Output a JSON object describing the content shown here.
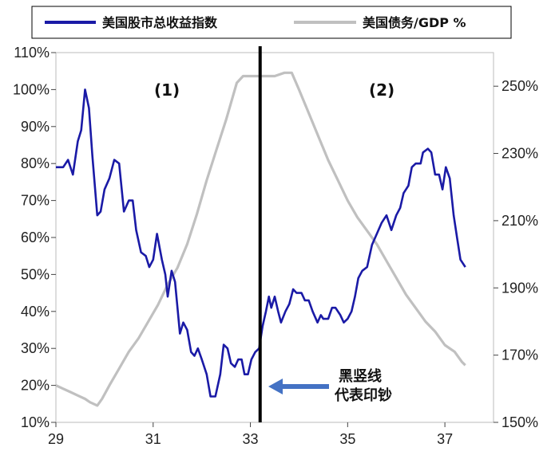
{
  "chart_data": {
    "type": "line",
    "x_ticks": [
      "29",
      "31",
      "33",
      "35",
      "37"
    ],
    "xlim": [
      29,
      38
    ],
    "y_left": {
      "ticks": [
        "10%",
        "20%",
        "30%",
        "40%",
        "50%",
        "60%",
        "70%",
        "80%",
        "90%",
        "100%",
        "110%"
      ],
      "range": [
        10,
        110
      ]
    },
    "y_right": {
      "ticks": [
        "150%",
        "170%",
        "190%",
        "210%",
        "230%",
        "250%"
      ],
      "range": [
        150,
        260
      ]
    },
    "legend": {
      "placement": "top",
      "items": [
        "美国股市总收益指数",
        "美国债务/GDP %"
      ]
    },
    "regions": [
      "(1)",
      "(2)"
    ],
    "divider": {
      "x": 33.2,
      "color": "#000000"
    },
    "annotation": {
      "lines": [
        "黑竖线",
        "代表印钞"
      ],
      "color": "#4472c4"
    },
    "series": [
      {
        "name": "美国股市总收益指数",
        "axis": "left",
        "color": "#1a1aa6",
        "points": [
          [
            29.0,
            79
          ],
          [
            29.15,
            79
          ],
          [
            29.25,
            81
          ],
          [
            29.35,
            77
          ],
          [
            29.45,
            86
          ],
          [
            29.52,
            89
          ],
          [
            29.6,
            100
          ],
          [
            29.68,
            95
          ],
          [
            29.75,
            82
          ],
          [
            29.85,
            66
          ],
          [
            29.92,
            67
          ],
          [
            30.0,
            73
          ],
          [
            30.1,
            76
          ],
          [
            30.2,
            81
          ],
          [
            30.3,
            80
          ],
          [
            30.4,
            67
          ],
          [
            30.5,
            70
          ],
          [
            30.58,
            70
          ],
          [
            30.65,
            62
          ],
          [
            30.75,
            56
          ],
          [
            30.85,
            55
          ],
          [
            30.92,
            52
          ],
          [
            31.0,
            54
          ],
          [
            31.08,
            61
          ],
          [
            31.18,
            54
          ],
          [
            31.25,
            50
          ],
          [
            31.3,
            44
          ],
          [
            31.38,
            51
          ],
          [
            31.45,
            48
          ],
          [
            31.55,
            34
          ],
          [
            31.62,
            37
          ],
          [
            31.7,
            35
          ],
          [
            31.78,
            29
          ],
          [
            31.85,
            28
          ],
          [
            31.92,
            30
          ],
          [
            32.0,
            27
          ],
          [
            32.1,
            23
          ],
          [
            32.18,
            17
          ],
          [
            32.28,
            17
          ],
          [
            32.38,
            23
          ],
          [
            32.45,
            31
          ],
          [
            32.53,
            30
          ],
          [
            32.6,
            26
          ],
          [
            32.68,
            25
          ],
          [
            32.75,
            27
          ],
          [
            32.82,
            27
          ],
          [
            32.88,
            23
          ],
          [
            32.95,
            23
          ],
          [
            33.02,
            27
          ],
          [
            33.1,
            29
          ],
          [
            33.18,
            30
          ],
          [
            33.25,
            36
          ],
          [
            33.32,
            40
          ],
          [
            33.38,
            44
          ],
          [
            33.43,
            41
          ],
          [
            33.5,
            44
          ],
          [
            33.57,
            40
          ],
          [
            33.63,
            37
          ],
          [
            33.72,
            40
          ],
          [
            33.8,
            42
          ],
          [
            33.88,
            46
          ],
          [
            33.95,
            45
          ],
          [
            34.05,
            45
          ],
          [
            34.12,
            43
          ],
          [
            34.2,
            43
          ],
          [
            34.28,
            40
          ],
          [
            34.38,
            37
          ],
          [
            34.45,
            39
          ],
          [
            34.5,
            38
          ],
          [
            34.6,
            38
          ],
          [
            34.68,
            41
          ],
          [
            34.75,
            41
          ],
          [
            34.85,
            39
          ],
          [
            34.92,
            37
          ],
          [
            35.0,
            38
          ],
          [
            35.08,
            40
          ],
          [
            35.15,
            44
          ],
          [
            35.22,
            49
          ],
          [
            35.3,
            51
          ],
          [
            35.4,
            52
          ],
          [
            35.5,
            58
          ],
          [
            35.6,
            61
          ],
          [
            35.7,
            64
          ],
          [
            35.8,
            66
          ],
          [
            35.9,
            62
          ],
          [
            36.0,
            66
          ],
          [
            36.08,
            68
          ],
          [
            36.15,
            72
          ],
          [
            36.25,
            74
          ],
          [
            36.32,
            79
          ],
          [
            36.4,
            80
          ],
          [
            36.5,
            80
          ],
          [
            36.55,
            83
          ],
          [
            36.65,
            84
          ],
          [
            36.72,
            83
          ],
          [
            36.8,
            77
          ],
          [
            36.88,
            77
          ],
          [
            36.95,
            73
          ],
          [
            37.02,
            79
          ],
          [
            37.1,
            76
          ],
          [
            37.18,
            66
          ],
          [
            37.25,
            60
          ],
          [
            37.32,
            54
          ],
          [
            37.42,
            52
          ]
        ]
      },
      {
        "name": "美国债务/GDP %",
        "axis": "right",
        "color": "#c0c0c0",
        "points": [
          [
            29.0,
            161
          ],
          [
            29.15,
            160
          ],
          [
            29.3,
            159
          ],
          [
            29.45,
            158
          ],
          [
            29.6,
            157
          ],
          [
            29.7,
            156
          ],
          [
            29.85,
            155
          ],
          [
            29.95,
            157
          ],
          [
            30.1,
            161
          ],
          [
            30.3,
            166
          ],
          [
            30.5,
            171
          ],
          [
            30.7,
            175
          ],
          [
            30.9,
            180
          ],
          [
            31.1,
            185
          ],
          [
            31.3,
            191
          ],
          [
            31.5,
            196
          ],
          [
            31.7,
            203
          ],
          [
            31.9,
            212
          ],
          [
            32.1,
            222
          ],
          [
            32.3,
            231
          ],
          [
            32.5,
            240
          ],
          [
            32.6,
            245
          ],
          [
            32.72,
            251
          ],
          [
            32.85,
            253
          ],
          [
            33.0,
            253
          ],
          [
            33.2,
            253
          ],
          [
            33.5,
            253
          ],
          [
            33.7,
            254
          ],
          [
            33.85,
            254
          ],
          [
            34.0,
            249
          ],
          [
            34.2,
            242
          ],
          [
            34.4,
            235
          ],
          [
            34.6,
            228
          ],
          [
            34.8,
            222
          ],
          [
            35.0,
            216
          ],
          [
            35.2,
            211
          ],
          [
            35.4,
            207
          ],
          [
            35.6,
            203
          ],
          [
            35.8,
            198
          ],
          [
            36.0,
            193
          ],
          [
            36.2,
            188
          ],
          [
            36.4,
            184
          ],
          [
            36.6,
            180
          ],
          [
            36.8,
            177
          ],
          [
            37.0,
            173
          ],
          [
            37.2,
            171
          ],
          [
            37.35,
            168
          ],
          [
            37.42,
            167
          ]
        ]
      }
    ]
  }
}
